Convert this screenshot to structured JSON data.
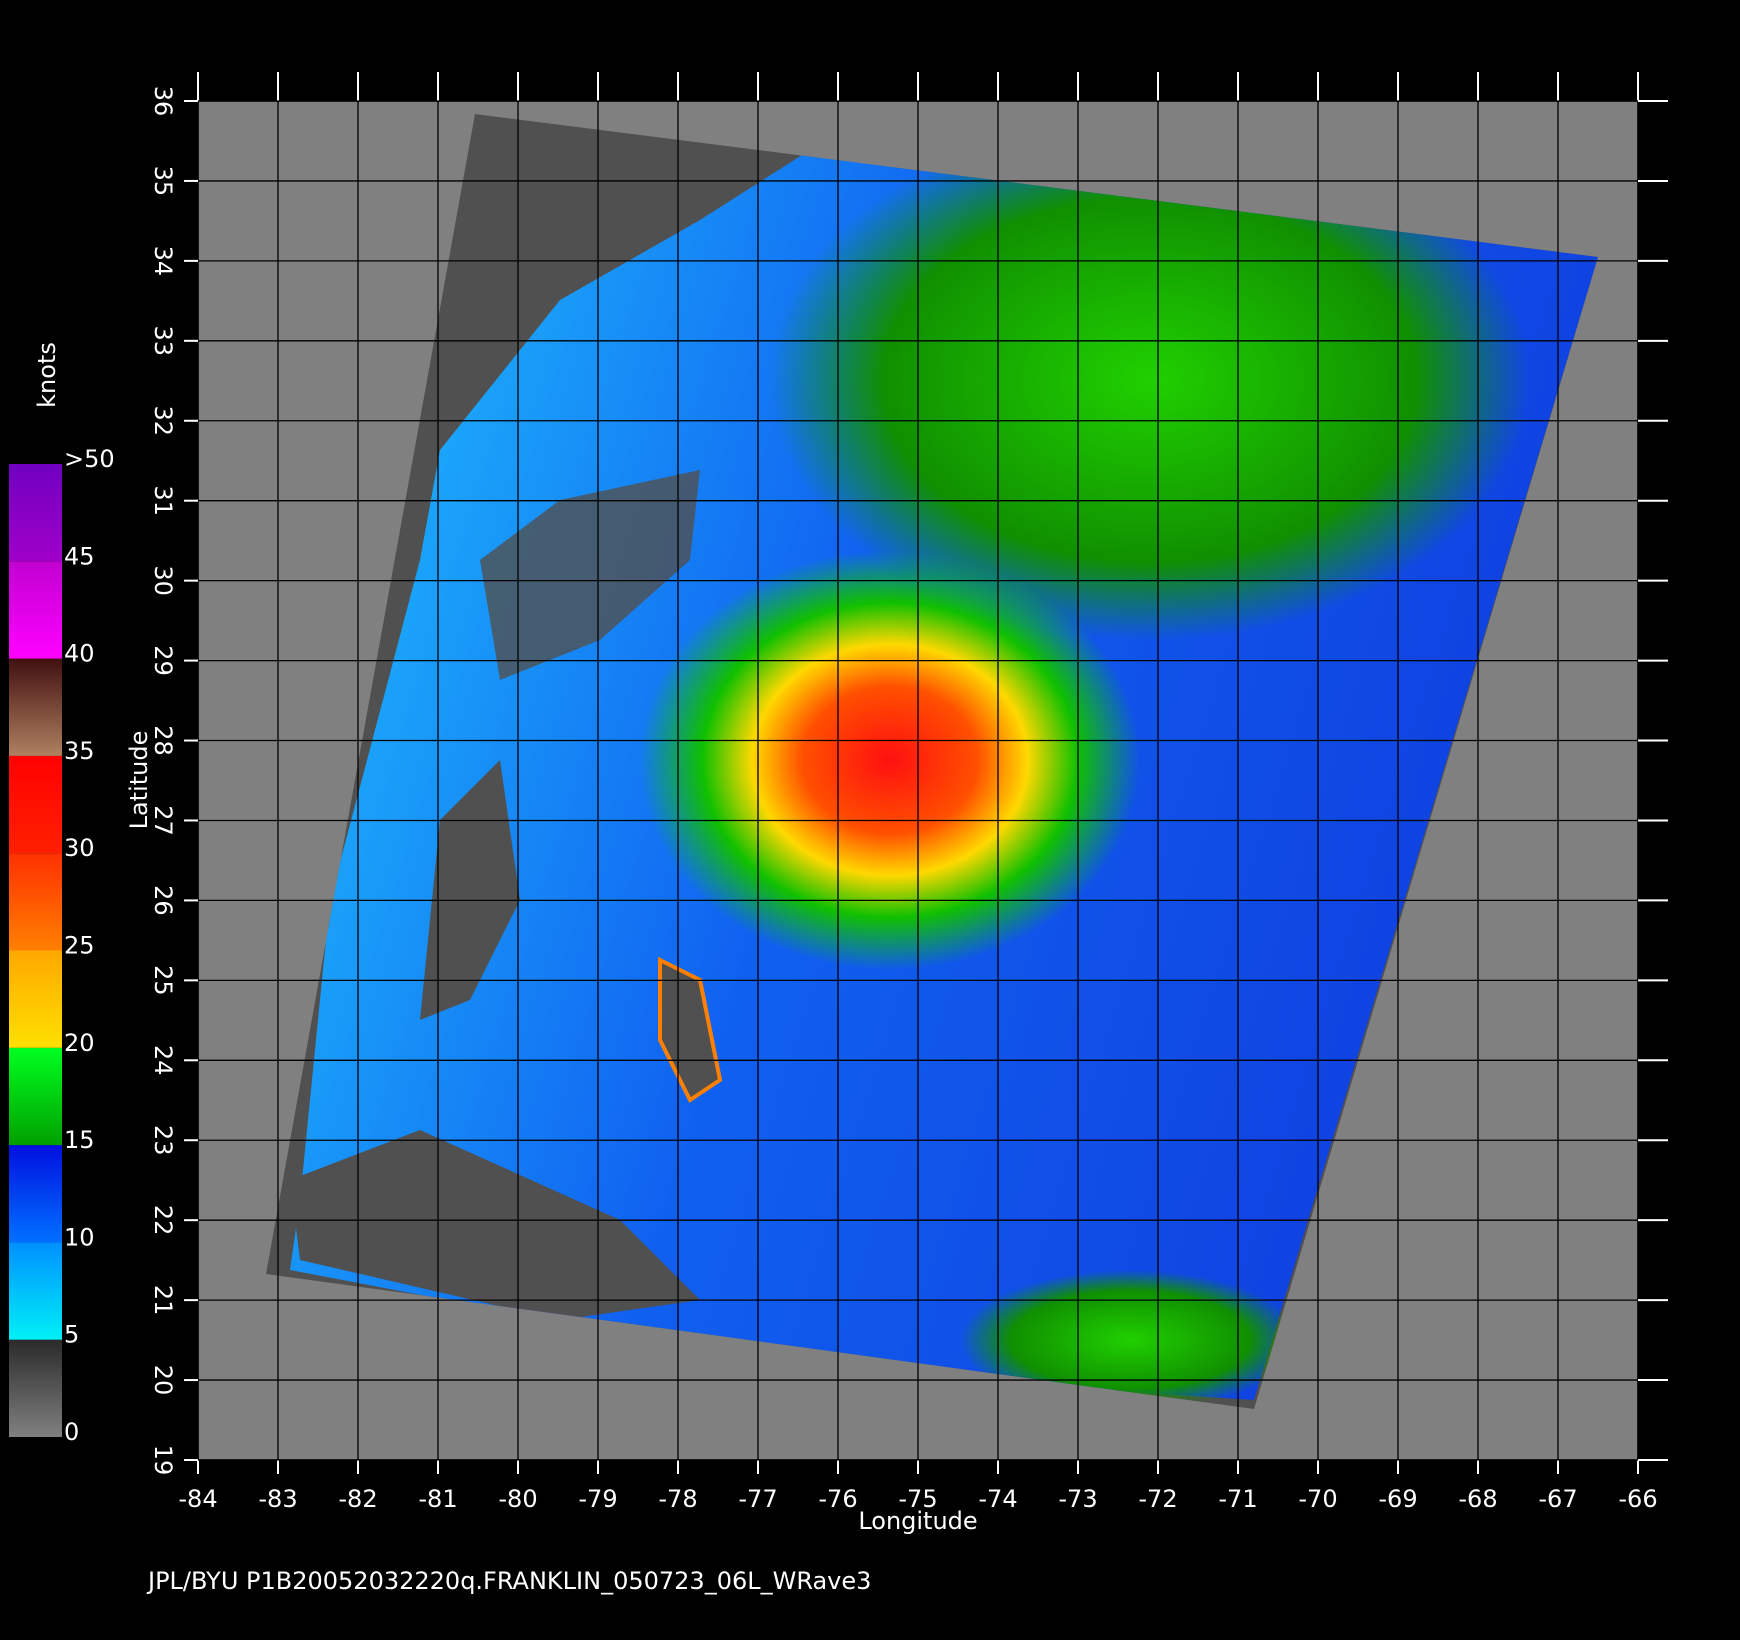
{
  "map": {
    "xlabel": "Longitude",
    "ylabel": "Latitude",
    "xlim": [
      -84,
      -66
    ],
    "ylim": [
      19,
      36
    ],
    "xticks": [
      -84,
      -83,
      -82,
      -81,
      -80,
      -79,
      -78,
      -77,
      -76,
      -75,
      -74,
      -73,
      -72,
      -71,
      -70,
      -69,
      -68,
      -67,
      -66
    ],
    "yticks": [
      19,
      20,
      21,
      22,
      23,
      24,
      25,
      26,
      27,
      28,
      29,
      30,
      31,
      32,
      33,
      34,
      35,
      36
    ],
    "grid": true,
    "colorbar": {
      "title": "knots",
      "lim": [
        0,
        50
      ],
      "ticks": [
        0,
        5,
        10,
        15,
        20,
        25,
        30,
        35,
        40,
        45,
        {
          "value": 50,
          "label": ">50"
        }
      ],
      "colors": [
        [
          "#808080",
          "#2a2a2a"
        ],
        [
          "#00f0f8",
          "#0090ff"
        ],
        [
          "#0070ff",
          "#0010e0"
        ],
        [
          "#00a000",
          "#00ff20"
        ],
        [
          "#ffe000",
          "#ffa800"
        ],
        [
          "#ff8000",
          "#ff3000"
        ],
        [
          "#ff2000",
          "#ff0000"
        ],
        [
          "#b08060",
          "#401010"
        ],
        [
          "#ff00ff",
          "#c000d0"
        ],
        [
          "#a000c8",
          "#7000c0"
        ]
      ]
    }
  },
  "footer": "JPL/BYU  P1B20052032220q.FRANKLIN_050723_06L_WRave3"
}
